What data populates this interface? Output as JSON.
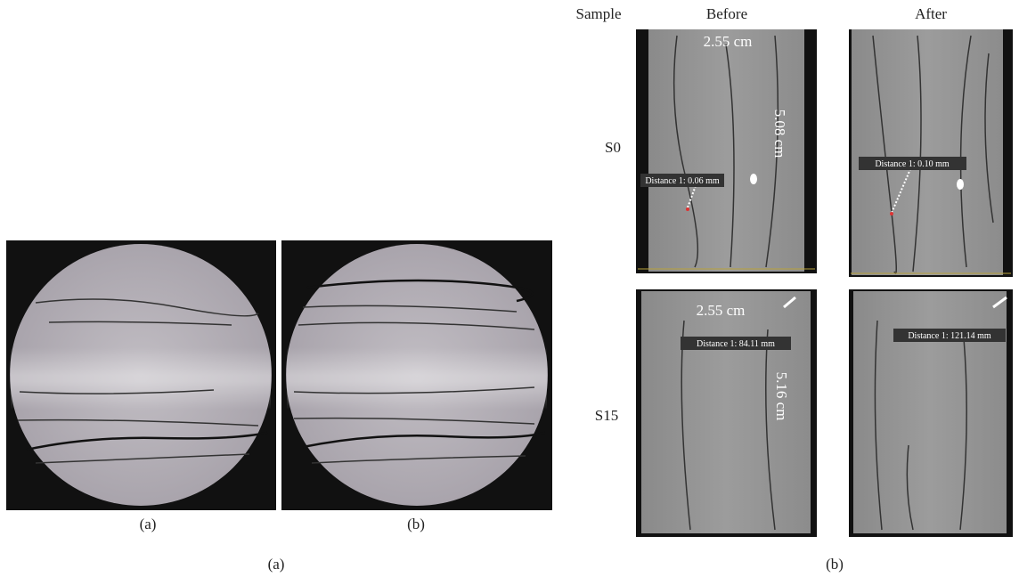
{
  "left_panel": {
    "images": [
      {
        "label": "(a)"
      },
      {
        "label": "(b)"
      }
    ],
    "caption": "(a)"
  },
  "right_panel": {
    "header": [
      "Sample",
      "Before",
      "After"
    ],
    "rows": [
      {
        "sample": "S0",
        "before": {
          "width": "2.55 cm",
          "height": "5.08 cm",
          "measurement": "Distance 1: 0.06 mm"
        },
        "after": {
          "measurement": "Distance 1: 0.10 mm"
        }
      },
      {
        "sample": "S15",
        "before": {
          "width": "2.55 cm",
          "height": "5.16 cm",
          "measurement": "Distance 1: 84.11 mm"
        },
        "after": {
          "measurement": "Distance 1: 121.14 mm"
        }
      }
    ],
    "caption": "(b)"
  }
}
